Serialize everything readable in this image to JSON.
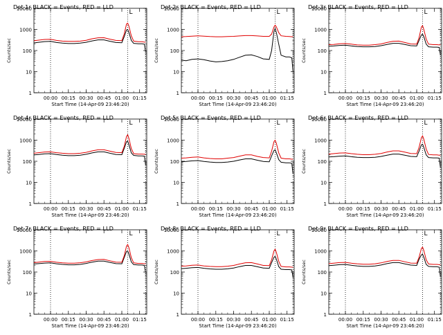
{
  "figure": {
    "series_colors": {
      "events": "#000000",
      "lld": "#e00000"
    },
    "ylabel": "Counts/sec",
    "xlabel": "Start Time (14-Apr-09 23:46:20)",
    "x_ticks": [
      "00:00",
      "00:15",
      "00:30",
      "00:45",
      "01:00",
      "01:15"
    ],
    "y_ticks": [
      "1",
      "10",
      "100",
      "1000",
      "10000"
    ],
    "marker_label": "L"
  },
  "chart_data": [
    {
      "type": "line",
      "title": "Det 1r BLACK = Events, RED = LLD",
      "ylabel": "Counts/sec",
      "xlabel": "Start Time (14-Apr-09 23:46:20)",
      "ylog": true,
      "ylim": [
        1,
        10000
      ],
      "x_ticks": [
        "00:00",
        "00:15",
        "00:30",
        "00:45",
        "01:00",
        "01:15"
      ],
      "vlines": [
        "00:00",
        "01:05",
        "01:20"
      ],
      "x": [
        "23:46",
        "23:50",
        "23:55",
        "00:00",
        "00:05",
        "00:10",
        "00:15",
        "00:20",
        "00:25",
        "00:30",
        "00:35",
        "00:40",
        "00:45",
        "00:50",
        "00:55",
        "01:00",
        "01:02",
        "01:04",
        "01:05",
        "01:06",
        "01:08",
        "01:10",
        "01:14",
        "01:17",
        "01:19",
        "01:20"
      ],
      "series": [
        {
          "name": "BLACK = Events",
          "values": [
            230,
            245,
            265,
            270,
            240,
            225,
            215,
            215,
            225,
            245,
            285,
            320,
            320,
            275,
            240,
            235,
            450,
            950,
            1000,
            700,
            300,
            220,
            210,
            210,
            200,
            90
          ]
        },
        {
          "name": "RED = LLD",
          "values": [
            290,
            310,
            335,
            340,
            300,
            280,
            270,
            270,
            280,
            305,
            360,
            400,
            405,
            345,
            300,
            295,
            600,
            1800,
            2000,
            1400,
            500,
            280,
            260,
            260,
            250,
            250
          ]
        }
      ]
    },
    {
      "type": "line",
      "title": "Det 2r BLACK = Events, RED = LLD",
      "ylabel": "Counts/sec",
      "xlabel": "Start Time (14-Apr-09 23:46:20)",
      "ylog": true,
      "ylim": [
        1,
        10000
      ],
      "x_ticks": [
        "00:00",
        "00:15",
        "00:30",
        "00:45",
        "01:00",
        "01:15"
      ],
      "vlines": [
        "00:00",
        "01:05",
        "01:20"
      ],
      "x": [
        "23:46",
        "23:50",
        "23:55",
        "00:00",
        "00:05",
        "00:10",
        "00:15",
        "00:20",
        "00:25",
        "00:30",
        "00:35",
        "00:40",
        "00:45",
        "00:50",
        "00:55",
        "01:00",
        "01:02",
        "01:04",
        "01:05",
        "01:06",
        "01:08",
        "01:10",
        "01:14",
        "01:17",
        "01:19",
        "01:20"
      ],
      "series": [
        {
          "name": "BLACK = Events",
          "values": [
            35,
            33,
            38,
            40,
            37,
            32,
            29,
            30,
            33,
            38,
            48,
            60,
            62,
            52,
            40,
            38,
            100,
            800,
            1100,
            700,
            200,
            60,
            50,
            50,
            45,
            10
          ]
        },
        {
          "name": "RED = LLD",
          "values": [
            450,
            460,
            480,
            500,
            480,
            460,
            450,
            450,
            460,
            470,
            490,
            510,
            510,
            490,
            470,
            470,
            600,
            1300,
            1600,
            1300,
            700,
            500,
            470,
            460,
            450,
            460
          ]
        }
      ]
    },
    {
      "type": "line",
      "title": "Det 3r BLACK = Events, RED = LLD",
      "ylabel": "Counts/sec",
      "xlabel": "Start Time (14-Apr-09 23:46:20)",
      "ylog": true,
      "ylim": [
        1,
        10000
      ],
      "x_ticks": [
        "00:00",
        "00:15",
        "00:30",
        "00:45",
        "01:00",
        "01:15"
      ],
      "vlines": [
        "00:00",
        "01:05",
        "01:20"
      ],
      "x": [
        "23:46",
        "23:50",
        "23:55",
        "00:00",
        "00:05",
        "00:10",
        "00:15",
        "00:20",
        "00:25",
        "00:30",
        "00:35",
        "00:40",
        "00:45",
        "00:50",
        "00:55",
        "01:00",
        "01:02",
        "01:04",
        "01:05",
        "01:06",
        "01:08",
        "01:10",
        "01:14",
        "01:17",
        "01:19",
        "01:20"
      ],
      "series": [
        {
          "name": "BLACK = Events",
          "values": [
            160,
            165,
            175,
            180,
            165,
            155,
            150,
            150,
            155,
            170,
            195,
            220,
            220,
            195,
            170,
            165,
            300,
            550,
            600,
            450,
            200,
            150,
            145,
            145,
            140,
            60
          ]
        },
        {
          "name": "RED = LLD",
          "values": [
            190,
            195,
            210,
            215,
            200,
            185,
            180,
            180,
            190,
            205,
            240,
            275,
            280,
            240,
            205,
            200,
            400,
            1300,
            1500,
            1000,
            350,
            200,
            190,
            190,
            185,
            190
          ]
        }
      ]
    },
    {
      "type": "line",
      "title": "Det 4r BLACK = Events, RED = LLD",
      "ylabel": "Counts/sec",
      "xlabel": "Start Time (14-Apr-09 23:46:20)",
      "ylog": true,
      "ylim": [
        1,
        10000
      ],
      "x_ticks": [
        "00:00",
        "00:15",
        "00:30",
        "00:45",
        "01:00",
        "01:15"
      ],
      "vlines": [
        "00:00",
        "01:05",
        "01:20"
      ],
      "x": [
        "23:46",
        "23:50",
        "23:55",
        "00:00",
        "00:05",
        "00:10",
        "00:15",
        "00:20",
        "00:25",
        "00:30",
        "00:35",
        "00:40",
        "00:45",
        "00:50",
        "00:55",
        "01:00",
        "01:02",
        "01:04",
        "01:05",
        "01:06",
        "01:08",
        "01:10",
        "01:14",
        "01:17",
        "01:19",
        "01:20"
      ],
      "series": [
        {
          "name": "BLACK = Events",
          "values": [
            200,
            210,
            225,
            230,
            210,
            195,
            185,
            185,
            195,
            215,
            250,
            280,
            280,
            240,
            210,
            205,
            400,
            850,
            900,
            600,
            250,
            190,
            180,
            180,
            175,
            70
          ]
        },
        {
          "name": "RED = LLD",
          "values": [
            240,
            255,
            275,
            280,
            255,
            240,
            230,
            230,
            240,
            265,
            310,
            350,
            350,
            300,
            260,
            255,
            500,
            1500,
            1800,
            1200,
            400,
            230,
            220,
            220,
            215,
            215
          ]
        }
      ]
    },
    {
      "type": "line",
      "title": "Det 5r BLACK = Events, RED = LLD",
      "ylabel": "Counts/sec",
      "xlabel": "Start Time (14-Apr-09 23:46:20)",
      "ylog": true,
      "ylim": [
        1,
        10000
      ],
      "x_ticks": [
        "00:00",
        "00:15",
        "00:30",
        "00:45",
        "01:00",
        "01:15"
      ],
      "vlines": [
        "00:00",
        "01:05",
        "01:20"
      ],
      "x": [
        "23:46",
        "23:50",
        "23:55",
        "00:00",
        "00:05",
        "00:10",
        "00:15",
        "00:20",
        "00:25",
        "00:30",
        "00:35",
        "00:40",
        "00:45",
        "00:50",
        "00:55",
        "01:00",
        "01:02",
        "01:04",
        "01:05",
        "01:06",
        "01:08",
        "01:10",
        "01:14",
        "01:17",
        "01:19",
        "01:20"
      ],
      "series": [
        {
          "name": "BLACK = Events",
          "values": [
            95,
            98,
            105,
            108,
            98,
            92,
            88,
            88,
            92,
            100,
            115,
            130,
            130,
            112,
            98,
            95,
            180,
            320,
            350,
            250,
            120,
            90,
            85,
            85,
            80,
            25
          ]
        },
        {
          "name": "RED = LLD",
          "values": [
            140,
            145,
            155,
            160,
            145,
            135,
            130,
            130,
            140,
            150,
            175,
            200,
            200,
            170,
            150,
            145,
            300,
            850,
            1000,
            700,
            250,
            140,
            130,
            130,
            125,
            125
          ]
        }
      ]
    },
    {
      "type": "line",
      "title": "Det 6r BLACK = Events, RED = LLD",
      "ylabel": "Counts/sec",
      "xlabel": "Start Time (14-Apr-09 23:46:20)",
      "ylog": true,
      "ylim": [
        1,
        10000
      ],
      "x_ticks": [
        "00:00",
        "00:15",
        "00:30",
        "00:45",
        "01:00",
        "01:15"
      ],
      "vlines": [
        "00:00",
        "01:05",
        "01:20"
      ],
      "x": [
        "23:46",
        "23:50",
        "23:55",
        "00:00",
        "00:05",
        "00:10",
        "00:15",
        "00:20",
        "00:25",
        "00:30",
        "00:35",
        "00:40",
        "00:45",
        "00:50",
        "00:55",
        "01:00",
        "01:02",
        "01:04",
        "01:05",
        "01:06",
        "01:08",
        "01:10",
        "01:14",
        "01:17",
        "01:19",
        "01:20"
      ],
      "series": [
        {
          "name": "BLACK = Events",
          "values": [
            160,
            165,
            175,
            180,
            165,
            155,
            150,
            150,
            155,
            170,
            195,
            220,
            220,
            195,
            170,
            165,
            300,
            600,
            650,
            450,
            200,
            150,
            145,
            145,
            140,
            50
          ]
        },
        {
          "name": "RED = LLD",
          "values": [
            220,
            230,
            245,
            250,
            230,
            215,
            205,
            205,
            215,
            235,
            275,
            310,
            310,
            270,
            235,
            230,
            450,
            1300,
            1600,
            1100,
            380,
            210,
            200,
            200,
            195,
            195
          ]
        }
      ]
    },
    {
      "type": "line",
      "title": "Det 7r BLACK = Events, RED = LLD",
      "ylabel": "Counts/sec",
      "xlabel": "Start Time (14-Apr-09 23:46:20)",
      "ylog": true,
      "ylim": [
        1,
        10000
      ],
      "x_ticks": [
        "00:00",
        "00:15",
        "00:30",
        "00:45",
        "01:00",
        "01:15"
      ],
      "vlines": [
        "00:00",
        "01:05",
        "01:20"
      ],
      "x": [
        "23:46",
        "23:50",
        "23:55",
        "00:00",
        "00:05",
        "00:10",
        "00:15",
        "00:20",
        "00:25",
        "00:30",
        "00:35",
        "00:40",
        "00:45",
        "00:50",
        "00:55",
        "01:00",
        "01:02",
        "01:04",
        "01:05",
        "01:06",
        "01:08",
        "01:10",
        "01:14",
        "01:17",
        "01:19",
        "01:20"
      ],
      "series": [
        {
          "name": "BLACK = Events",
          "values": [
            240,
            250,
            265,
            270,
            245,
            230,
            220,
            220,
            230,
            255,
            295,
            330,
            330,
            285,
            250,
            245,
            480,
            950,
            1000,
            700,
            300,
            225,
            215,
            215,
            205,
            95
          ]
        },
        {
          "name": "RED = LLD",
          "values": [
            280,
            295,
            315,
            320,
            290,
            270,
            260,
            260,
            275,
            300,
            350,
            390,
            395,
            340,
            295,
            290,
            580,
            1700,
            2000,
            1400,
            480,
            270,
            255,
            255,
            245,
            245
          ]
        }
      ]
    },
    {
      "type": "line",
      "title": "Det 8r BLACK = Events, RED = LLD",
      "ylabel": "Counts/sec",
      "xlabel": "Start Time (14-Apr-09 23:46:20)",
      "ylog": true,
      "ylim": [
        1,
        10000
      ],
      "x_ticks": [
        "00:00",
        "00:15",
        "00:30",
        "00:45",
        "01:00",
        "01:15"
      ],
      "vlines": [
        "00:00",
        "01:05",
        "01:20"
      ],
      "x": [
        "23:46",
        "23:50",
        "23:55",
        "00:00",
        "00:05",
        "00:10",
        "00:15",
        "00:20",
        "00:25",
        "00:30",
        "00:35",
        "00:40",
        "00:45",
        "00:50",
        "00:55",
        "01:00",
        "01:02",
        "01:04",
        "01:05",
        "01:06",
        "01:08",
        "01:10",
        "01:14",
        "01:17",
        "01:19",
        "01:20"
      ],
      "series": [
        {
          "name": "BLACK = Events",
          "values": [
            145,
            150,
            160,
            165,
            150,
            140,
            135,
            135,
            142,
            155,
            180,
            205,
            205,
            178,
            155,
            150,
            280,
            500,
            550,
            400,
            180,
            135,
            130,
            130,
            125,
            55
          ]
        },
        {
          "name": "RED = LLD",
          "values": [
            190,
            195,
            210,
            215,
            195,
            185,
            180,
            180,
            188,
            205,
            240,
            275,
            280,
            240,
            205,
            200,
            380,
            1000,
            1200,
            850,
            320,
            185,
            175,
            175,
            170,
            170
          ]
        }
      ]
    },
    {
      "type": "line",
      "title": "Det 9r BLACK = Events, RED = LLD",
      "ylabel": "Counts/sec",
      "xlabel": "Start Time (14-Apr-09 23:46:20)",
      "ylog": true,
      "ylim": [
        1,
        10000
      ],
      "x_ticks": [
        "00:00",
        "00:15",
        "00:30",
        "00:45",
        "01:00",
        "01:15"
      ],
      "vlines": [
        "00:00",
        "01:05",
        "01:20"
      ],
      "x": [
        "23:46",
        "23:50",
        "23:55",
        "00:00",
        "00:05",
        "00:10",
        "00:15",
        "00:20",
        "00:25",
        "00:30",
        "00:35",
        "00:40",
        "00:45",
        "00:50",
        "00:55",
        "01:00",
        "01:02",
        "01:04",
        "01:05",
        "01:06",
        "01:08",
        "01:10",
        "01:14",
        "01:17",
        "01:19",
        "01:20"
      ],
      "series": [
        {
          "name": "BLACK = Events",
          "values": [
            200,
            210,
            222,
            228,
            208,
            195,
            185,
            185,
            195,
            215,
            250,
            280,
            280,
            242,
            212,
            205,
            400,
            650,
            700,
            500,
            230,
            185,
            178,
            178,
            170,
            60
          ]
        },
        {
          "name": "RED = LLD",
          "values": [
            250,
            262,
            280,
            285,
            260,
            245,
            235,
            235,
            245,
            270,
            315,
            355,
            355,
            305,
            265,
            260,
            500,
            1300,
            1500,
            1050,
            380,
            240,
            230,
            230,
            222,
            222
          ]
        }
      ]
    }
  ]
}
